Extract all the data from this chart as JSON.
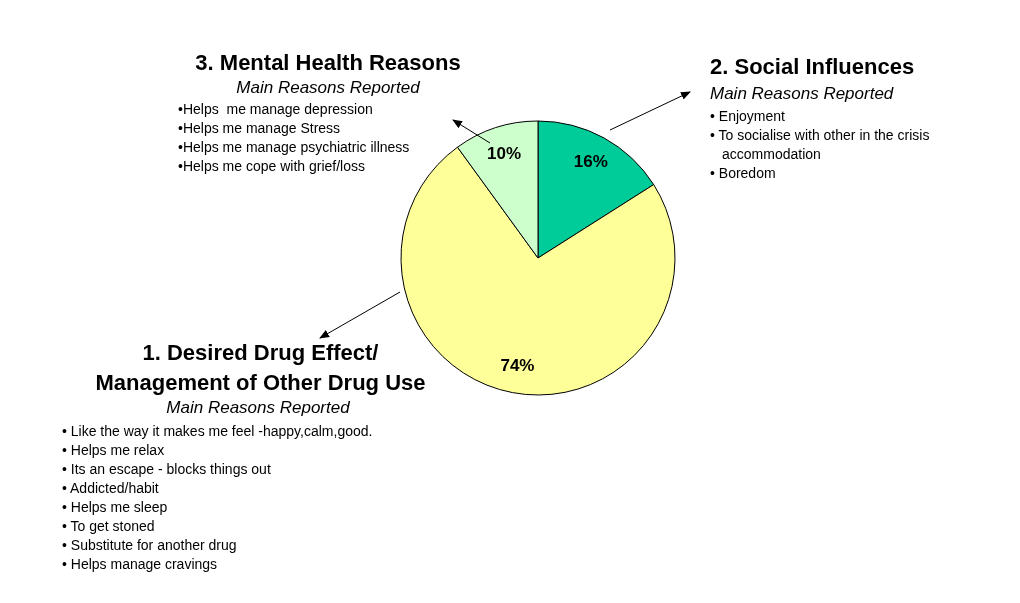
{
  "chart_data": {
    "type": "pie",
    "categories": [
      "2. Social Influences",
      "1. Desired Drug Effect/ Management of Other Drug Use",
      "3. Mental Health Reasons"
    ],
    "values": [
      16,
      74,
      10
    ],
    "colors": [
      "#00cc99",
      "#ffff99",
      "#ccffcc"
    ],
    "value_labels": [
      "16%",
      "74%",
      "10%"
    ],
    "legend": false,
    "annotations": [
      "Main Reasons Reported",
      "• Enjoyment",
      "• To socialise with other in the crisis accommodation",
      "• Boredom",
      "Main Reasons Reported",
      "• Like the way it makes me feel -happy,calm,good.",
      "• Helps me relax",
      "• Its an escape - blocks things out",
      "• Addicted/habit",
      "• Helps me sleep",
      "• To get stoned",
      "• Substitute for another drug",
      "• Helps manage cravings",
      "Main Reasons Reported",
      "•Helps  me manage depression",
      "•Helps me manage Stress",
      "•Helps me manage psychiatric illness",
      "•Helps me cope with grief/loss"
    ]
  }
}
